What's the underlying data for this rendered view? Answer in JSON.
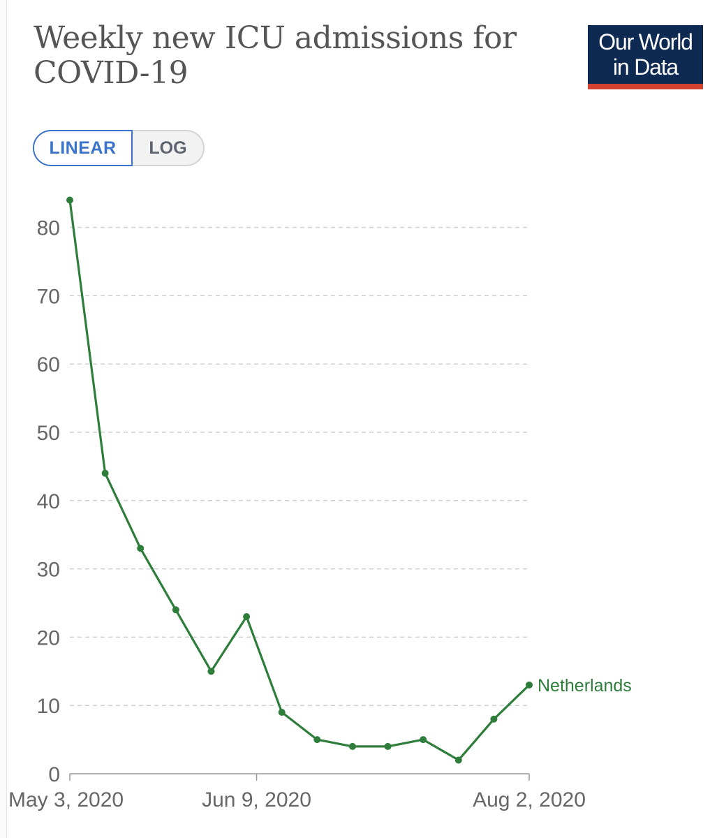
{
  "header": {
    "title": "Weekly new ICU admissions for COVID-19"
  },
  "logo": {
    "line1": "Our World",
    "line2": "in Data",
    "background": "#0f2a52",
    "accent": "#d4422f"
  },
  "scale_toggle": {
    "linear_label": "LINEAR",
    "log_label": "LOG",
    "selected": "LINEAR",
    "accent": "#3b73c9"
  },
  "chart_data": {
    "type": "line",
    "title": "Weekly new ICU admissions for COVID-19",
    "xlabel": "",
    "ylabel": "",
    "x_start": "2020-05-03",
    "x_end": "2020-08-02",
    "x_tick_labels": [
      "May 3, 2020",
      "Jun 9, 2020",
      "Aug 2, 2020"
    ],
    "y_ticks": [
      0,
      10,
      20,
      30,
      40,
      50,
      60,
      70,
      80
    ],
    "ylim": [
      0,
      84
    ],
    "grid": true,
    "series": [
      {
        "name": "Netherlands",
        "color": "#2e7d3b",
        "x": [
          "2020-05-03",
          "2020-05-10",
          "2020-05-17",
          "2020-05-24",
          "2020-05-31",
          "2020-06-07",
          "2020-06-14",
          "2020-06-21",
          "2020-06-28",
          "2020-07-05",
          "2020-07-12",
          "2020-07-19",
          "2020-07-26",
          "2020-08-02"
        ],
        "values": [
          84,
          44,
          33,
          24,
          15,
          23,
          9,
          5,
          4,
          4,
          5,
          2,
          8,
          13
        ]
      }
    ]
  }
}
